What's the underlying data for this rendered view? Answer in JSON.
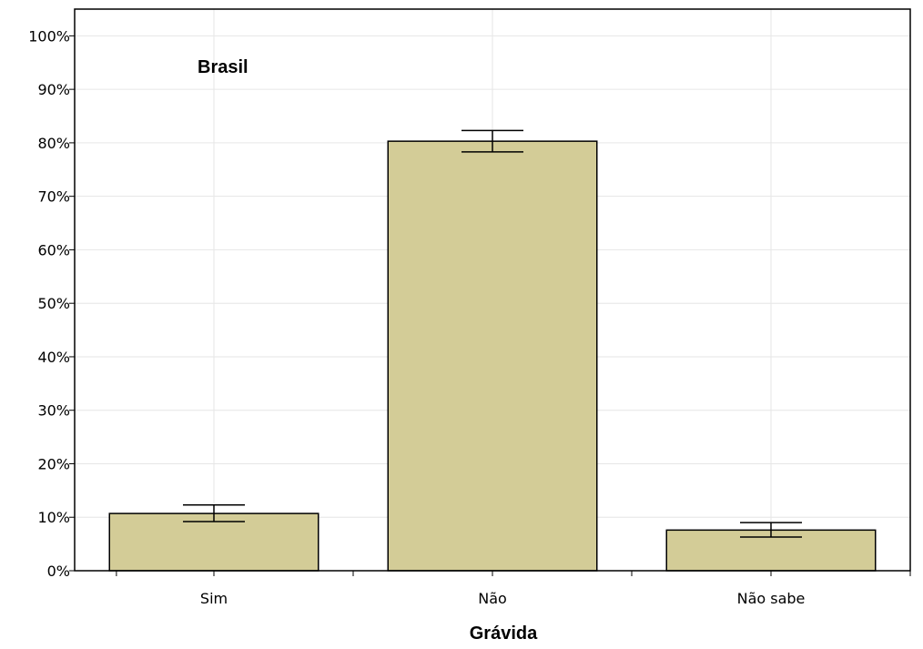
{
  "chart_data": {
    "type": "bar",
    "categories": [
      "Sim",
      "Não",
      "Não sabe"
    ],
    "values": [
      10.7,
      80.3,
      7.6
    ],
    "error_low": [
      9.2,
      78.3,
      6.3
    ],
    "error_high": [
      12.3,
      82.3,
      9.0
    ],
    "title": "",
    "annotation": "Brasil",
    "xlabel": "Grávida",
    "ylabel": "",
    "ylim": [
      0,
      105
    ],
    "yticks": [
      0,
      10,
      20,
      30,
      40,
      50,
      60,
      70,
      80,
      90,
      100
    ],
    "ytick_labels": [
      "0%",
      "10%",
      "20%",
      "30%",
      "40%",
      "50%",
      "60%",
      "70%",
      "80%",
      "90%",
      "100%"
    ],
    "grid": true,
    "legend": "none",
    "colors": {
      "bar_fill": "#d3cc97",
      "bar_stroke": "#000000",
      "grid": "#e6e6e6"
    }
  }
}
